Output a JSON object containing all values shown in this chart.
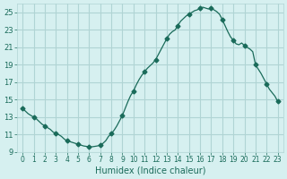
{
  "xlabel": "Humidex (Indice chaleur)",
  "ylabel": "",
  "xlim": [
    0,
    23
  ],
  "ylim": [
    9,
    26
  ],
  "yticks": [
    9,
    11,
    13,
    15,
    17,
    19,
    21,
    23,
    25
  ],
  "xticks": [
    0,
    1,
    2,
    3,
    4,
    5,
    6,
    7,
    8,
    9,
    10,
    11,
    12,
    13,
    14,
    15,
    16,
    17,
    18,
    19,
    20,
    21,
    22,
    23
  ],
  "bg_color": "#d6f0f0",
  "line_color": "#1a6b5a",
  "grid_color": "#b0d4d4",
  "x": [
    0,
    0.25,
    0.5,
    0.75,
    1,
    1.25,
    1.5,
    1.75,
    2,
    2.25,
    2.5,
    2.75,
    3,
    3.25,
    3.5,
    3.75,
    4,
    4.25,
    4.5,
    4.75,
    5,
    5.25,
    5.5,
    5.75,
    6,
    6.25,
    6.5,
    6.75,
    7,
    7.25,
    7.5,
    7.75,
    8,
    8.25,
    8.5,
    8.75,
    9,
    9.25,
    9.5,
    9.75,
    10,
    10.25,
    10.5,
    10.75,
    11,
    11.25,
    11.5,
    11.75,
    12,
    12.25,
    12.5,
    12.75,
    13,
    13.25,
    13.5,
    13.75,
    14,
    14.25,
    14.5,
    14.75,
    15,
    15.25,
    15.5,
    15.75,
    16,
    16.25,
    16.5,
    16.75,
    17,
    17.25,
    17.5,
    17.75,
    18,
    18.25,
    18.5,
    18.75,
    19,
    19.25,
    19.5,
    19.75,
    20,
    20.25,
    20.5,
    20.75,
    21,
    21.25,
    21.5,
    21.75,
    22,
    22.25,
    22.5,
    22.75,
    23
  ],
  "y": [
    14.0,
    13.7,
    13.4,
    13.2,
    13.0,
    12.8,
    12.5,
    12.2,
    12.0,
    11.8,
    11.6,
    11.3,
    11.1,
    11.0,
    10.8,
    10.5,
    10.3,
    10.2,
    10.1,
    10.0,
    9.9,
    9.8,
    9.7,
    9.65,
    9.6,
    9.6,
    9.65,
    9.7,
    9.8,
    10.0,
    10.3,
    10.8,
    11.1,
    11.5,
    12.0,
    12.6,
    13.2,
    14.0,
    14.8,
    15.5,
    16.0,
    16.7,
    17.3,
    17.8,
    18.2,
    18.6,
    18.9,
    19.2,
    19.6,
    20.2,
    20.8,
    21.4,
    22.0,
    22.5,
    22.8,
    23.0,
    23.5,
    24.0,
    24.3,
    24.6,
    24.8,
    25.0,
    25.2,
    25.3,
    25.5,
    25.6,
    25.5,
    25.4,
    25.5,
    25.3,
    25.1,
    24.8,
    24.2,
    23.5,
    22.8,
    22.2,
    21.8,
    21.4,
    21.3,
    21.5,
    21.2,
    21.0,
    20.8,
    20.5,
    19.0,
    18.5,
    18.0,
    17.4,
    16.8,
    16.2,
    15.8,
    15.4,
    14.8
  ],
  "marker_x": [
    0,
    1,
    2,
    3,
    4,
    5,
    6,
    7,
    8,
    9,
    10,
    11,
    12,
    13,
    14,
    15,
    16,
    17,
    18,
    19,
    20,
    21,
    22,
    23
  ],
  "marker_y": [
    14.0,
    13.0,
    12.0,
    11.1,
    10.3,
    9.9,
    9.6,
    9.8,
    11.1,
    13.2,
    16.0,
    18.2,
    19.6,
    22.0,
    23.5,
    24.8,
    25.5,
    25.5,
    24.2,
    21.8,
    21.2,
    19.0,
    16.8,
    14.8
  ]
}
